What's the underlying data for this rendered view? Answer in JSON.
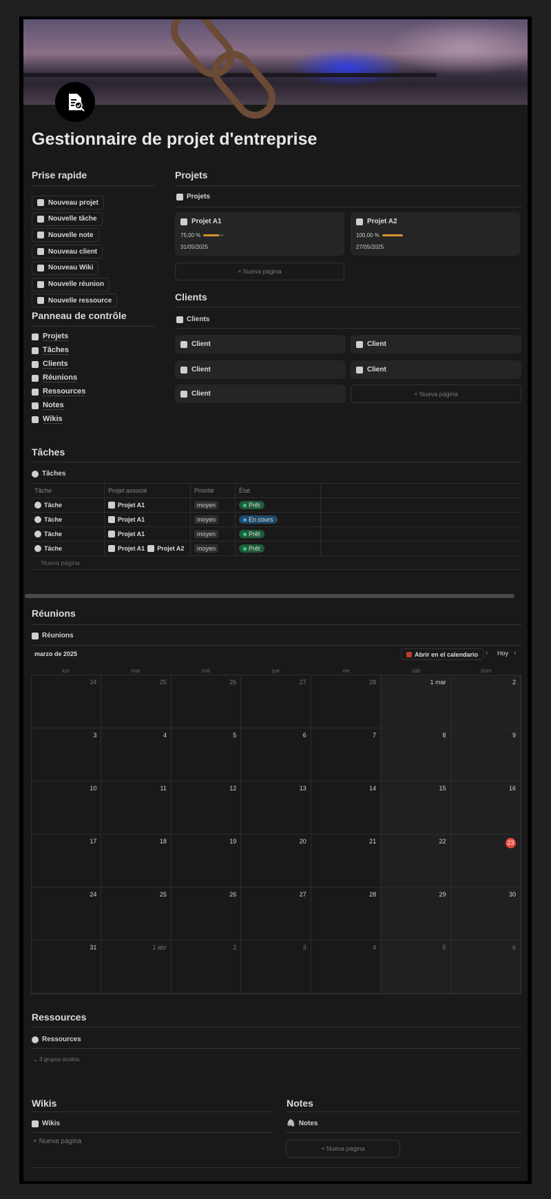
{
  "title": "Gestionnaire de projet d'entreprise",
  "quick": {
    "heading": "Prise rapide",
    "buttons": [
      "Nouveau projet",
      "Nouvelle tâche",
      "Nouvelle note",
      "Nouveau client",
      "Nouveau Wiki",
      "Nouvelle réunion",
      "Nouvelle ressource"
    ]
  },
  "panel": {
    "heading": "Panneau de contrôle",
    "items": [
      "Projets",
      "Tâches",
      "Clients",
      "Réunions",
      "Ressources",
      "Notes",
      "Wikis"
    ]
  },
  "projects": {
    "heading": "Projets",
    "view": "Projets",
    "cards": [
      {
        "name": "Projet A1",
        "progress": "75,00 %",
        "progress_value": 75,
        "date": "31/05/2025"
      },
      {
        "name": "Projet A2",
        "progress": "100,00 %",
        "progress_value": 100,
        "date": "27/05/2025"
      }
    ],
    "new_page": "Nueva página"
  },
  "clients": {
    "heading": "Clients",
    "view": "Clients",
    "cards": [
      "Client",
      "Client",
      "Client",
      "Client",
      "Client"
    ],
    "new_page": "Nueva página"
  },
  "tasks": {
    "heading": "Tâches",
    "view": "Tâches",
    "columns": [
      "Tâche",
      "Projet associé",
      "Priorité",
      "État"
    ],
    "rows": [
      {
        "task": "Tâche",
        "projects": [
          "Projet A1"
        ],
        "priority": "moyen",
        "status": "Prêt"
      },
      {
        "task": "Tâche",
        "projects": [
          "Projet A1"
        ],
        "priority": "moyen",
        "status": "En cours"
      },
      {
        "task": "Tâche",
        "projects": [
          "Projet A1"
        ],
        "priority": "moyen",
        "status": "Prêt"
      },
      {
        "task": "Tâche",
        "projects": [
          "Projet A1",
          "Projet A2"
        ],
        "priority": "moyen",
        "status": "Prêt"
      }
    ],
    "new_page": "Nueva página",
    "status_colors": {
      "Prêt": "#1f5c3b",
      "En cours": "#1f4a6b"
    }
  },
  "meetings": {
    "heading": "Réunions",
    "view": "Réunions",
    "month": "marzo de 2025",
    "open_calendar": "Abrir en el calendario",
    "today": "Hoy",
    "weekdays": [
      "lun",
      "mar",
      "mié",
      "jue",
      "vie",
      "sáb",
      "dom"
    ],
    "weeks": [
      [
        {
          "d": "24",
          "m": true
        },
        {
          "d": "25",
          "m": true
        },
        {
          "d": "26",
          "m": true
        },
        {
          "d": "27",
          "m": true
        },
        {
          "d": "28",
          "m": true
        },
        {
          "d": "1 mar"
        },
        {
          "d": "2"
        }
      ],
      [
        {
          "d": "3"
        },
        {
          "d": "4"
        },
        {
          "d": "5"
        },
        {
          "d": "6"
        },
        {
          "d": "7"
        },
        {
          "d": "8"
        },
        {
          "d": "9"
        }
      ],
      [
        {
          "d": "10"
        },
        {
          "d": "11"
        },
        {
          "d": "12"
        },
        {
          "d": "13"
        },
        {
          "d": "14"
        },
        {
          "d": "15"
        },
        {
          "d": "16"
        }
      ],
      [
        {
          "d": "17"
        },
        {
          "d": "18"
        },
        {
          "d": "19"
        },
        {
          "d": "20"
        },
        {
          "d": "21"
        },
        {
          "d": "22"
        },
        {
          "d": "23",
          "today": true
        }
      ],
      [
        {
          "d": "24"
        },
        {
          "d": "25"
        },
        {
          "d": "26"
        },
        {
          "d": "27"
        },
        {
          "d": "28"
        },
        {
          "d": "29"
        },
        {
          "d": "30"
        }
      ],
      [
        {
          "d": "31"
        },
        {
          "d": "1 abr",
          "m": true
        },
        {
          "d": "2",
          "m": true
        },
        {
          "d": "3",
          "m": true
        },
        {
          "d": "4",
          "m": true
        },
        {
          "d": "5",
          "m": true
        },
        {
          "d": "6",
          "m": true
        }
      ]
    ]
  },
  "resources": {
    "heading": "Ressources",
    "view": "Ressources",
    "hidden_groups": "3 grupos ocultos"
  },
  "wikis": {
    "heading": "Wikis",
    "view": "Wikis",
    "new_page": "Nueva página"
  },
  "notes": {
    "heading": "Notes",
    "view": "Notes",
    "new_page": "Nueva página"
  },
  "colors": {
    "accent_progress": "#d8912f",
    "today": "#e0473b"
  }
}
